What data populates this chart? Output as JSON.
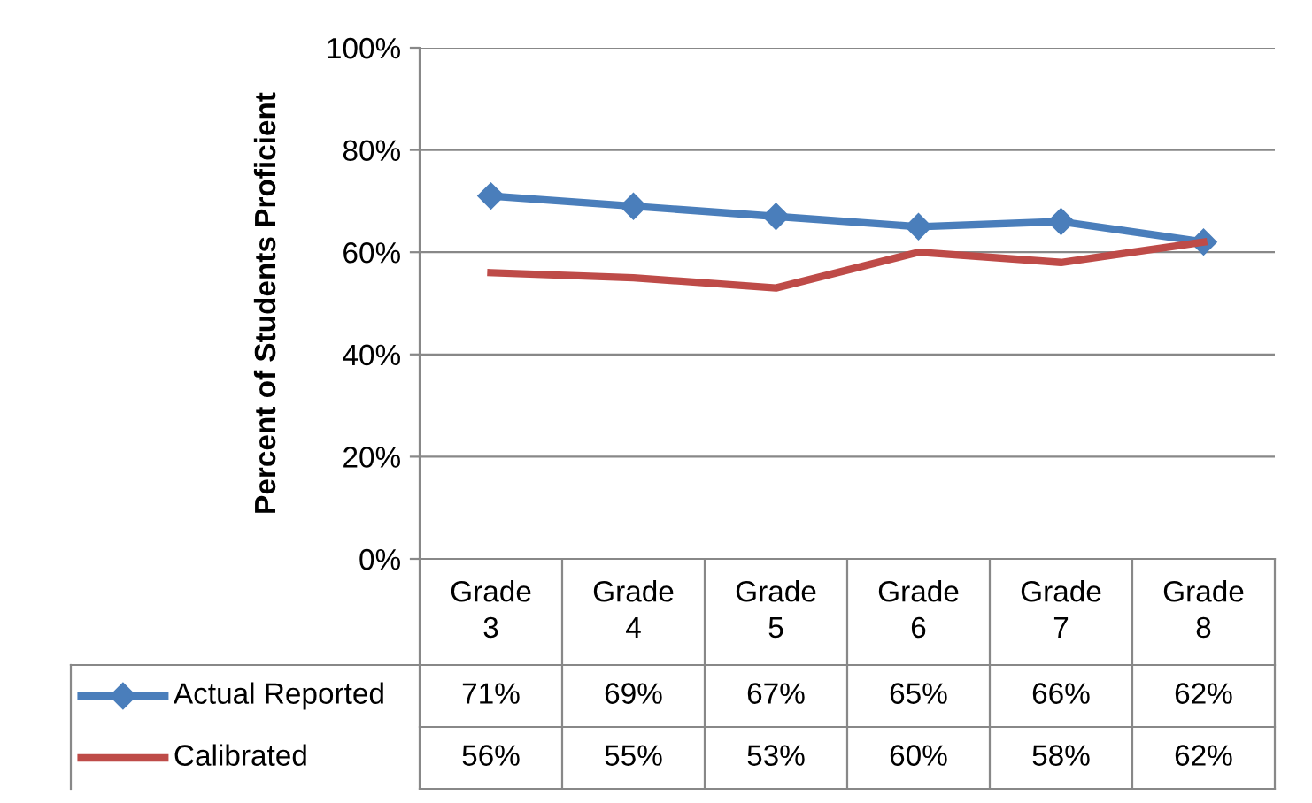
{
  "chart_data": {
    "type": "line",
    "ylabel": "Percent of Students Proficient",
    "categories": [
      "Grade 3",
      "Grade 4",
      "Grade 5",
      "Grade 6",
      "Grade 7",
      "Grade 8"
    ],
    "series": [
      {
        "name": "Actual Reported",
        "color": "#4a7ebb",
        "values": [
          71,
          69,
          67,
          65,
          66,
          62
        ],
        "value_labels": [
          "71%",
          "69%",
          "67%",
          "65%",
          "66%",
          "62%"
        ],
        "marker": "diamond"
      },
      {
        "name": "Calibrated",
        "color": "#be4b48",
        "values": [
          56,
          55,
          53,
          60,
          58,
          62
        ],
        "value_labels": [
          "56%",
          "55%",
          "53%",
          "60%",
          "58%",
          "62%"
        ],
        "marker": "none"
      }
    ],
    "ylim": [
      0,
      100
    ],
    "yticks": [
      {
        "value": 0,
        "label": "0%"
      },
      {
        "value": 20,
        "label": "20%"
      },
      {
        "value": 40,
        "label": "40%"
      },
      {
        "value": 60,
        "label": "60%"
      },
      {
        "value": 80,
        "label": "80%"
      },
      {
        "value": 100,
        "label": "100%"
      }
    ],
    "grid": "y",
    "legend": "bottom"
  }
}
